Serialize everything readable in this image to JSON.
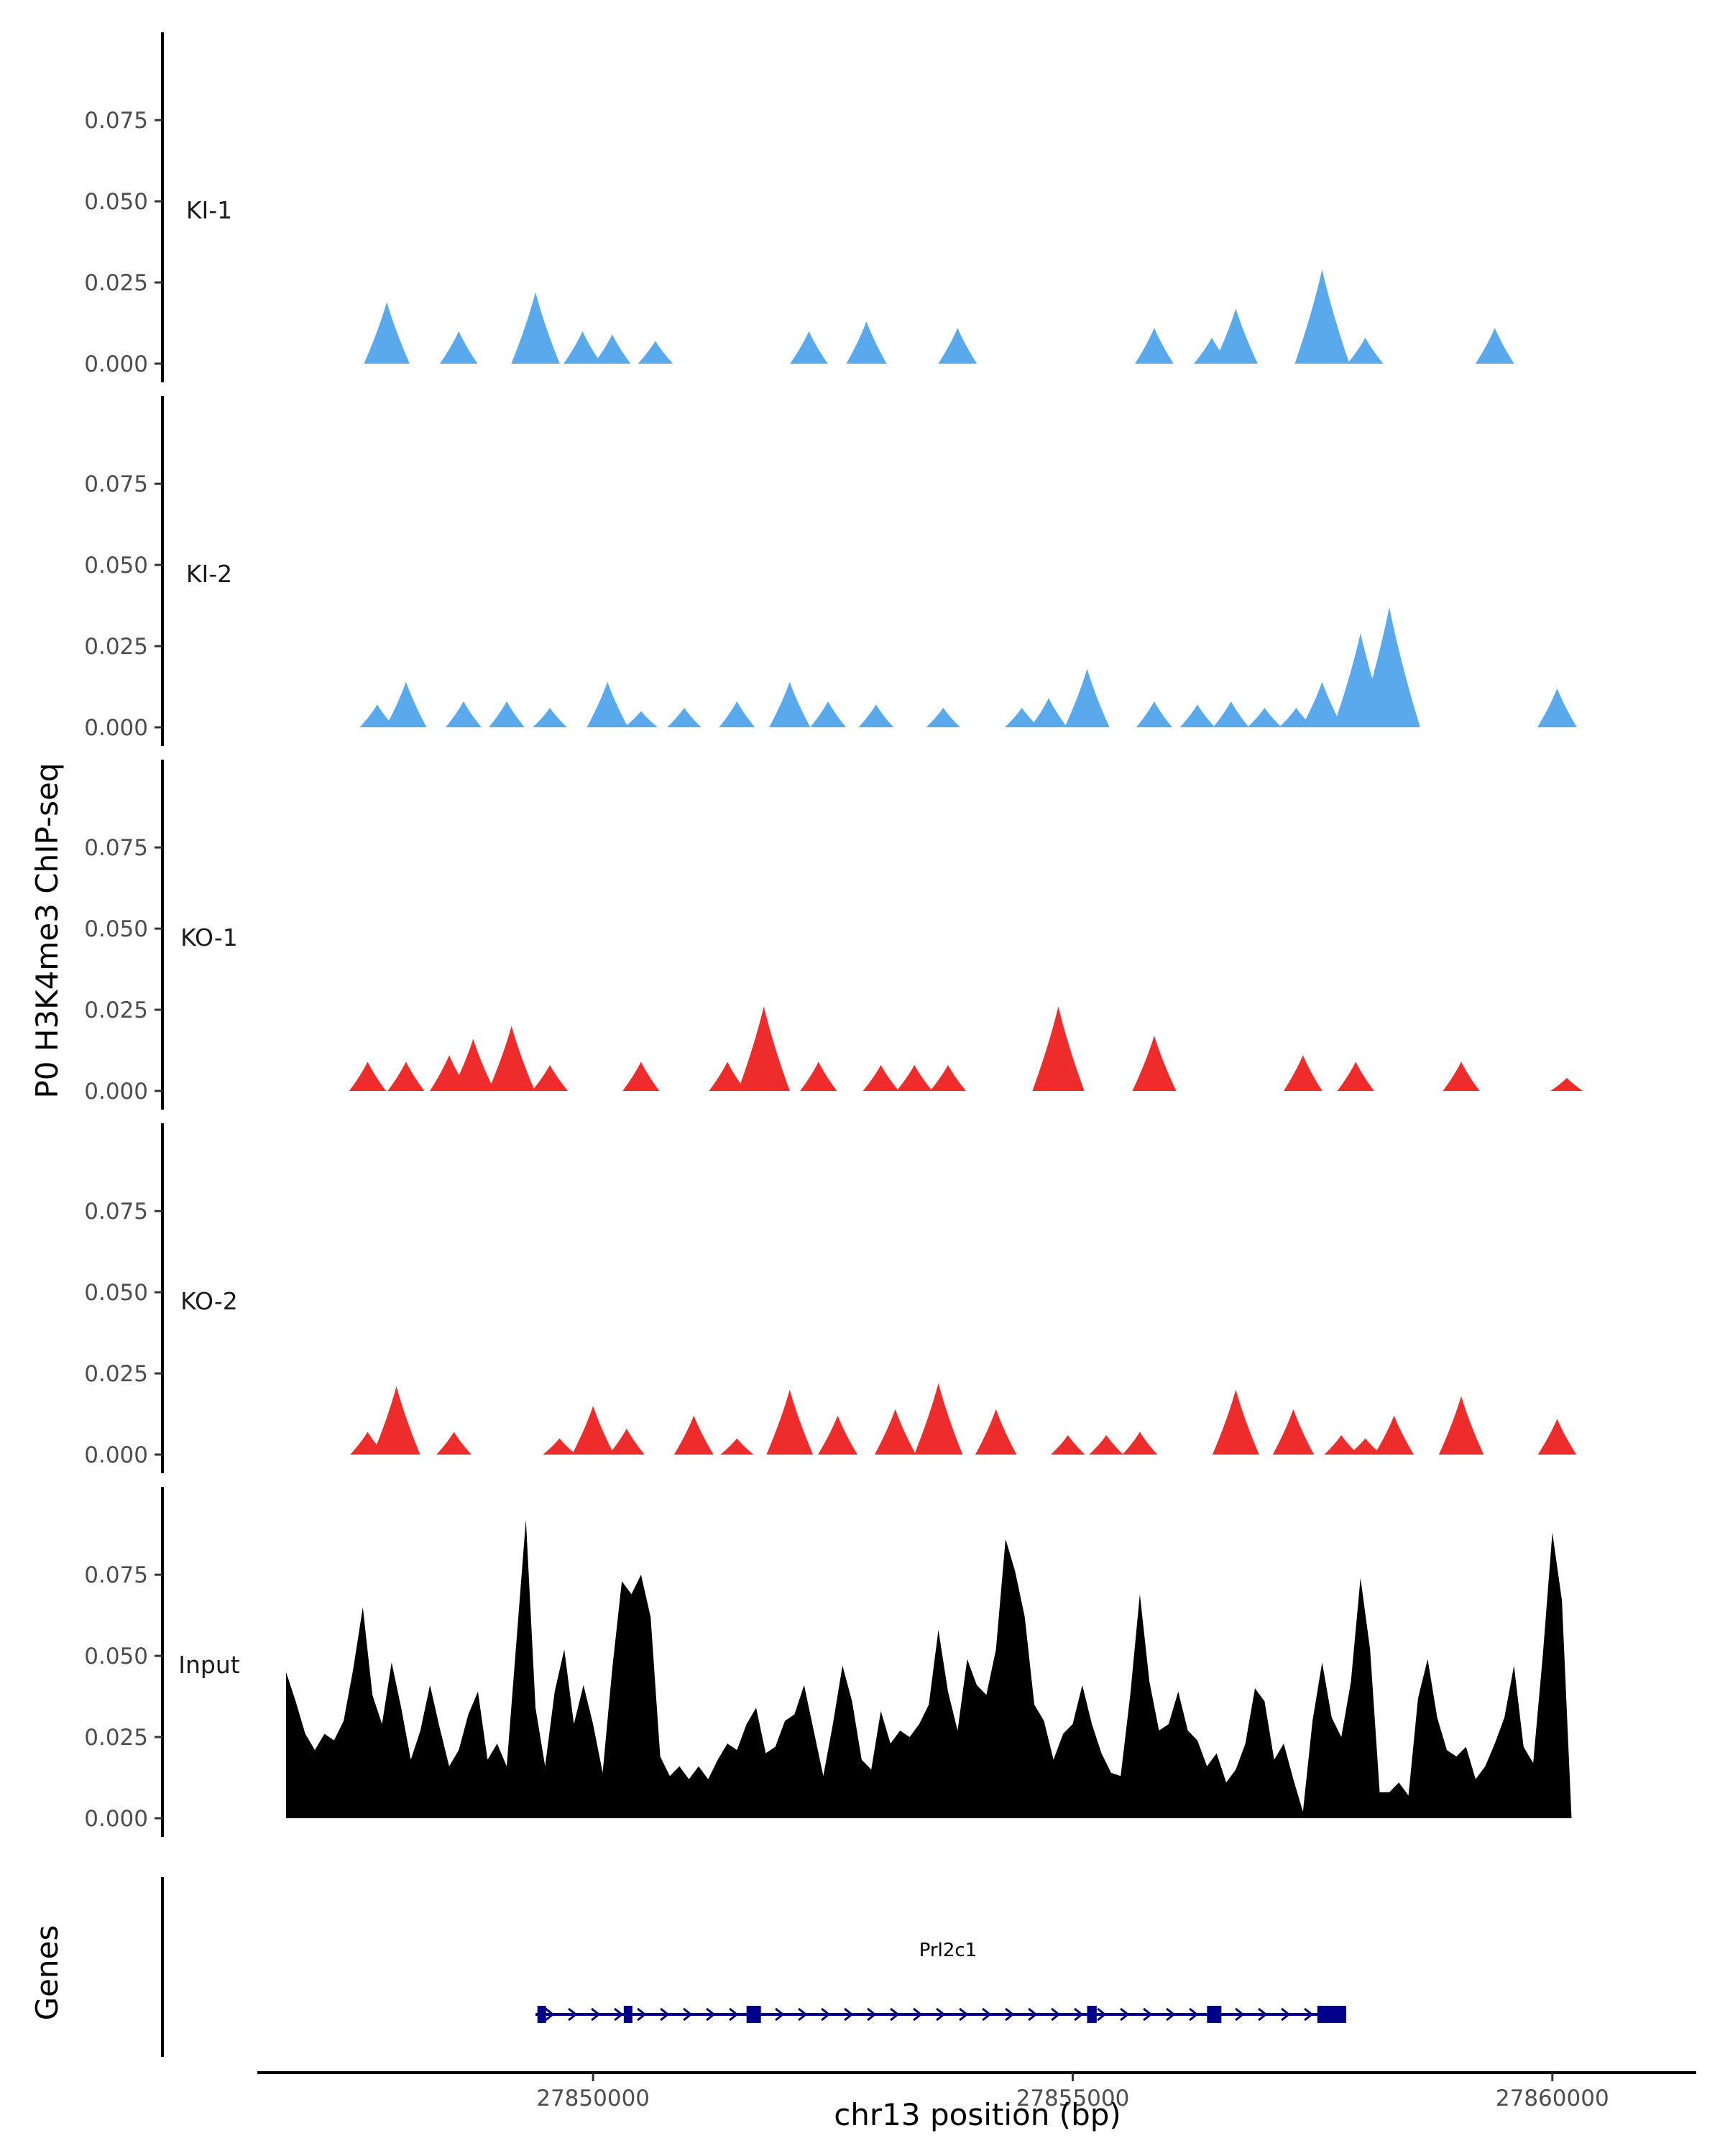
{
  "chart_data": {
    "type": "area",
    "ylabel": "P0 H3K4me3 ChIP-seq",
    "xlabel": "chr13 position (bp)",
    "genes_label": "Genes",
    "xlim": [
      27846500,
      27861500
    ],
    "ylim": [
      0,
      0.1
    ],
    "x_ticks": [
      27850000,
      27855000,
      27860000
    ],
    "x_tick_labels": [
      "27850000",
      "27855000",
      "27860000"
    ],
    "y_ticks": [
      0,
      0.025,
      0.05,
      0.075
    ],
    "y_tick_labels": [
      "0.000",
      "0.025",
      "0.050",
      "0.075"
    ],
    "colors": {
      "KI": "#5aa9ec",
      "KO": "#ee2c2c",
      "Input": "#000000",
      "gene": "#00008b"
    },
    "tracks": [
      {
        "name": "KI-1",
        "color": "#5aa9ec",
        "peaks": [
          [
            27847850,
            0.019
          ],
          [
            27848600,
            0.01
          ],
          [
            27849400,
            0.022
          ],
          [
            27849890,
            0.01
          ],
          [
            27850200,
            0.009
          ],
          [
            27850650,
            0.007
          ],
          [
            27852250,
            0.01
          ],
          [
            27852850,
            0.013
          ],
          [
            27853800,
            0.011
          ],
          [
            27855850,
            0.011
          ],
          [
            27856450,
            0.008
          ],
          [
            27856700,
            0.017
          ],
          [
            27857600,
            0.029
          ],
          [
            27858050,
            0.008
          ],
          [
            27859400,
            0.011
          ]
        ]
      },
      {
        "name": "KI-2",
        "color": "#5aa9ec",
        "peaks": [
          [
            27847750,
            0.007
          ],
          [
            27848050,
            0.014
          ],
          [
            27848650,
            0.008
          ],
          [
            27849100,
            0.008
          ],
          [
            27849550,
            0.006
          ],
          [
            27850150,
            0.014
          ],
          [
            27850500,
            0.005
          ],
          [
            27850950,
            0.006
          ],
          [
            27851500,
            0.008
          ],
          [
            27852050,
            0.014
          ],
          [
            27852450,
            0.008
          ],
          [
            27852950,
            0.007
          ],
          [
            27853650,
            0.006
          ],
          [
            27854470,
            0.006
          ],
          [
            27854750,
            0.009
          ],
          [
            27855150,
            0.018
          ],
          [
            27855850,
            0.008
          ],
          [
            27856300,
            0.007
          ],
          [
            27856650,
            0.008
          ],
          [
            27857000,
            0.006
          ],
          [
            27857330,
            0.006
          ],
          [
            27857600,
            0.014
          ],
          [
            27858000,
            0.029
          ],
          [
            27858300,
            0.037
          ],
          [
            27860050,
            0.012
          ]
        ]
      },
      {
        "name": "KO-1",
        "color": "#ee2c2c",
        "peaks": [
          [
            27847650,
            0.009
          ],
          [
            27848050,
            0.009
          ],
          [
            27848500,
            0.011
          ],
          [
            27848750,
            0.016
          ],
          [
            27849150,
            0.02
          ],
          [
            27849550,
            0.008
          ],
          [
            27850500,
            0.009
          ],
          [
            27851400,
            0.009
          ],
          [
            27851780,
            0.026
          ],
          [
            27852350,
            0.009
          ],
          [
            27853000,
            0.008
          ],
          [
            27853350,
            0.008
          ],
          [
            27853700,
            0.008
          ],
          [
            27854850,
            0.026
          ],
          [
            27855850,
            0.017
          ],
          [
            27857400,
            0.011
          ],
          [
            27857950,
            0.009
          ],
          [
            27859050,
            0.009
          ],
          [
            27860150,
            0.004
          ]
        ]
      },
      {
        "name": "KO-2",
        "color": "#ee2c2c",
        "peaks": [
          [
            27847650,
            0.007
          ],
          [
            27847950,
            0.021
          ],
          [
            27848550,
            0.007
          ],
          [
            27849650,
            0.005
          ],
          [
            27850000,
            0.015
          ],
          [
            27850350,
            0.008
          ],
          [
            27851050,
            0.012
          ],
          [
            27851500,
            0.005
          ],
          [
            27852050,
            0.02
          ],
          [
            27852550,
            0.012
          ],
          [
            27853150,
            0.014
          ],
          [
            27853600,
            0.022
          ],
          [
            27854200,
            0.014
          ],
          [
            27854950,
            0.006
          ],
          [
            27855350,
            0.006
          ],
          [
            27855700,
            0.007
          ],
          [
            27856700,
            0.02
          ],
          [
            27857300,
            0.014
          ],
          [
            27857800,
            0.006
          ],
          [
            27858050,
            0.005
          ],
          [
            27858350,
            0.012
          ],
          [
            27859050,
            0.018
          ],
          [
            27860050,
            0.011
          ]
        ]
      },
      {
        "name": "Input",
        "color": "#000000",
        "x": [
          27846800,
          27846900,
          27847000,
          27847100,
          27847200,
          27847300,
          27847400,
          27847500,
          27847600,
          27847700,
          27847800,
          27847900,
          27848000,
          27848100,
          27848200,
          27848300,
          27848400,
          27848500,
          27848600,
          27848700,
          27848800,
          27848900,
          27849000,
          27849100,
          27849200,
          27849300,
          27849400,
          27849500,
          27849600,
          27849700,
          27849800,
          27849900,
          27850000,
          27850100,
          27850200,
          27850300,
          27850400,
          27850500,
          27850600,
          27850700,
          27850800,
          27850900,
          27851000,
          27851100,
          27851200,
          27851300,
          27851400,
          27851500,
          27851600,
          27851700,
          27851800,
          27851900,
          27852000,
          27852100,
          27852200,
          27852300,
          27852400,
          27852500,
          27852600,
          27852700,
          27852800,
          27852900,
          27853000,
          27853100,
          27853200,
          27853300,
          27853400,
          27853500,
          27853600,
          27853700,
          27853800,
          27853900,
          27854000,
          27854100,
          27854200,
          27854300,
          27854400,
          27854500,
          27854600,
          27854700,
          27854800,
          27854900,
          27855000,
          27855100,
          27855200,
          27855300,
          27855400,
          27855500,
          27855600,
          27855700,
          27855800,
          27855900,
          27856000,
          27856100,
          27856200,
          27856300,
          27856400,
          27856500,
          27856600,
          27856700,
          27856800,
          27856900,
          27857000,
          27857100,
          27857200,
          27857300,
          27857400,
          27857500,
          27857600,
          27857700,
          27857800,
          27857900,
          27858000,
          27858100,
          27858200,
          27858300,
          27858400,
          27858500,
          27858600,
          27858700,
          27858800,
          27858900,
          27859000,
          27859100,
          27859200,
          27859300,
          27859400,
          27859500,
          27859600,
          27859700,
          27859800,
          27859900,
          27860000,
          27860100,
          27860200
        ],
        "values": [
          0.045,
          0.036,
          0.026,
          0.021,
          0.026,
          0.024,
          0.03,
          0.046,
          0.065,
          0.038,
          0.029,
          0.048,
          0.034,
          0.018,
          0.027,
          0.041,
          0.028,
          0.016,
          0.021,
          0.032,
          0.039,
          0.018,
          0.023,
          0.016,
          0.054,
          0.092,
          0.034,
          0.016,
          0.039,
          0.052,
          0.029,
          0.041,
          0.029,
          0.014,
          0.046,
          0.073,
          0.069,
          0.075,
          0.062,
          0.019,
          0.013,
          0.016,
          0.012,
          0.016,
          0.012,
          0.018,
          0.023,
          0.021,
          0.029,
          0.034,
          0.02,
          0.022,
          0.03,
          0.032,
          0.041,
          0.027,
          0.013,
          0.029,
          0.047,
          0.036,
          0.018,
          0.015,
          0.033,
          0.023,
          0.027,
          0.025,
          0.029,
          0.035,
          0.058,
          0.039,
          0.027,
          0.049,
          0.041,
          0.038,
          0.052,
          0.086,
          0.076,
          0.062,
          0.035,
          0.03,
          0.018,
          0.026,
          0.029,
          0.041,
          0.029,
          0.02,
          0.014,
          0.013,
          0.038,
          0.069,
          0.042,
          0.027,
          0.029,
          0.039,
          0.027,
          0.024,
          0.016,
          0.02,
          0.011,
          0.015,
          0.023,
          0.04,
          0.036,
          0.018,
          0.023,
          0.012,
          0.002,
          0.03,
          0.048,
          0.031,
          0.025,
          0.042,
          0.074,
          0.052,
          0.008,
          0.008,
          0.011,
          0.007,
          0.037,
          0.049,
          0.031,
          0.021,
          0.019,
          0.022,
          0.012,
          0.016,
          0.023,
          0.031,
          0.047,
          0.022,
          0.017,
          0.05,
          0.088,
          0.067,
          0.0
        ]
      }
    ],
    "gene": {
      "name": "Prl2c1",
      "start": 27849400,
      "end": 27857850,
      "strand": "+",
      "exons": [
        [
          27849420,
          27849500
        ],
        [
          27850320,
          27850400
        ],
        [
          27851600,
          27851750
        ],
        [
          27855150,
          27855250
        ],
        [
          27856400,
          27856550
        ],
        [
          27857550,
          27857850
        ]
      ]
    }
  }
}
